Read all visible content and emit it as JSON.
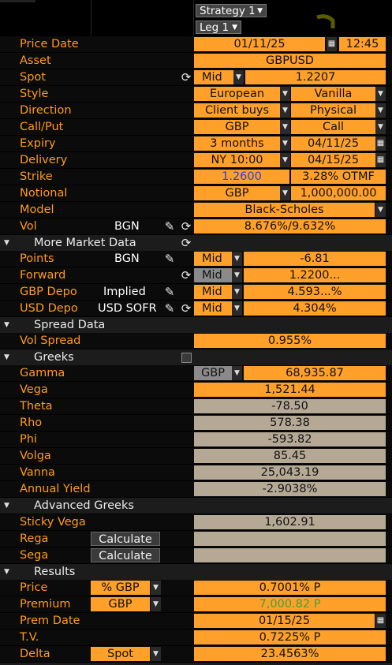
{
  "toolbar": {
    "strategy": "Strategy 1",
    "leg": "Leg 1"
  },
  "price_date": {
    "label": "Price Date",
    "date": "01/11/25",
    "time": "12:45"
  },
  "asset": {
    "label": "Asset",
    "value": "GBPUSD"
  },
  "spot": {
    "label": "Spot",
    "side": "Mid",
    "value": "1.2207"
  },
  "style": {
    "label": "Style",
    "exercise": "European",
    "type": "Vanilla"
  },
  "direction": {
    "label": "Direction",
    "value": "Client buys",
    "settle": "Physical"
  },
  "callput": {
    "label": "Call/Put",
    "ccy": "GBP",
    "value": "Call"
  },
  "expiry": {
    "label": "Expiry",
    "tenor": "3 months",
    "date": "04/11/25"
  },
  "delivery": {
    "label": "Delivery",
    "cut": "NY 10:00",
    "date": "04/15/25"
  },
  "strike": {
    "label": "Strike",
    "value": "1.2600",
    "moneyness": "3.28% OTMF",
    "value_color": "#2a3fd6"
  },
  "notional": {
    "label": "Notional",
    "ccy": "GBP",
    "value": "1,000,000.00"
  },
  "model": {
    "label": "Model",
    "value": "Black-Scholes"
  },
  "vol": {
    "label": "Vol",
    "source": "BGN",
    "value": "8.676%/9.632%"
  },
  "market_data": {
    "title": "More Market Data",
    "points": {
      "label": "Points",
      "source": "BGN",
      "side": "Mid",
      "value": "-6.81"
    },
    "forward": {
      "label": "Forward",
      "side": "Mid",
      "value": "1.2200..."
    },
    "gbp_depo": {
      "label": "GBP Depo",
      "source": "Implied",
      "side": "Mid",
      "value": "4.593...%"
    },
    "usd_depo": {
      "label": "USD Depo",
      "source": "USD SOFR",
      "side": "Mid",
      "value": "4.304%"
    }
  },
  "spread_data": {
    "title": "Spread Data",
    "vol_spread": {
      "label": "Vol Spread",
      "value": "0.955%"
    }
  },
  "greeks": {
    "title": "Greeks",
    "gamma": {
      "label": "Gamma",
      "ccy": "GBP",
      "value": "68,935.87"
    },
    "vega": {
      "label": "Vega",
      "value": "1,521.44"
    },
    "theta": {
      "label": "Theta",
      "value": "-78.50"
    },
    "rho": {
      "label": "Rho",
      "value": "578.38"
    },
    "phi": {
      "label": "Phi",
      "value": "-593.82"
    },
    "volga": {
      "label": "Volga",
      "value": "85.45"
    },
    "vanna": {
      "label": "Vanna",
      "value": "25,043.19"
    },
    "annual_yield": {
      "label": "Annual Yield",
      "value": "-2.9038%"
    }
  },
  "advanced_greeks": {
    "title": "Advanced Greeks",
    "sticky_vega": {
      "label": "Sticky Vega",
      "value": "1,602.91"
    },
    "rega": {
      "label": "Rega",
      "button": "Calculate"
    },
    "sega": {
      "label": "Sega",
      "button": "Calculate"
    }
  },
  "results": {
    "title": "Results",
    "price": {
      "label": "Price",
      "unit": "% GBP",
      "value": "0.7001% P"
    },
    "premium": {
      "label": "Premium",
      "ccy": "GBP",
      "value": "7,000.82 P",
      "value_color": "#3ca23c"
    },
    "prem_date": {
      "label": "Prem Date",
      "value": "01/15/25"
    },
    "tv": {
      "label": "T.V.",
      "value": "0.7225% P"
    },
    "delta": {
      "label": "Delta",
      "mode": "Spot",
      "value": "23.4563%"
    }
  },
  "icons": {
    "refresh": "refresh-icon",
    "pencil": "pencil-icon",
    "calendar": "calendar-icon",
    "dropdown": "chevron-down-icon",
    "collapse": "triangle-down-icon"
  }
}
